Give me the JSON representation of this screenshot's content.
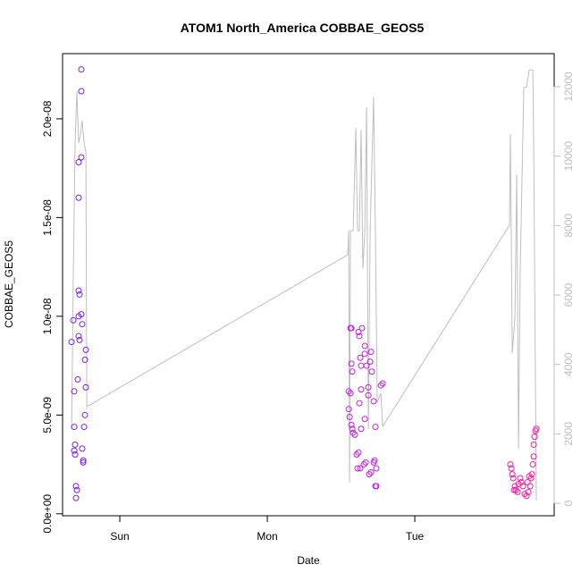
{
  "chart_data": {
    "type": "scatter",
    "title": "ATOM1 North_America COBBAE_GEOS5",
    "x_label": "Date",
    "y_label": "COBBAE_GEOS5",
    "xlim": [
      -0.388,
      2.945
    ],
    "xticks": [
      {
        "value": 0,
        "label": "Sun"
      },
      {
        "value": 1,
        "label": "Mon"
      },
      {
        "value": 2,
        "label": "Tue"
      }
    ],
    "ylim": [
      -1e-10,
      2.33e-08
    ],
    "yticks": [
      {
        "value": 0,
        "label": "0.0e+00"
      },
      {
        "value": 5e-09,
        "label": "5.0e-09"
      },
      {
        "value": 1e-08,
        "label": "1.0e-08"
      },
      {
        "value": 1.5e-08,
        "label": "1.5e-08"
      },
      {
        "value": 2e-08,
        "label": "2.0e-08"
      }
    ],
    "y2lim": [
      -360,
      12952
    ],
    "y2ticks": [
      0,
      2000,
      4000,
      6000,
      8000,
      10000,
      12000
    ],
    "y2_color": "#bebebe",
    "series": [
      {
        "type": "scatter",
        "color": "#7a1ff0",
        "x": [
          -0.261,
          -0.261,
          -0.261,
          -0.279,
          -0.279,
          -0.279,
          -0.273,
          -0.261,
          -0.279,
          -0.255,
          -0.315,
          -0.327,
          -0.279,
          -0.273,
          -0.23,
          -0.236,
          -0.23,
          -0.309,
          -0.285,
          -0.236,
          -0.242,
          -0.309,
          -0.303,
          -0.309,
          -0.303,
          -0.255,
          -0.248,
          -0.248,
          -0.297,
          -0.291,
          -0.297
        ],
        "values": [
          2.25e-08,
          2.14e-08,
          1.805e-08,
          1.78e-08,
          1.6e-08,
          1.13e-08,
          1.11e-08,
          1.01e-08,
          1e-08,
          9.6e-09,
          9.8e-09,
          8.7e-09,
          9e-09,
          8.8e-09,
          8.3e-09,
          7.8e-09,
          6.4e-09,
          6.2e-09,
          6.8e-09,
          5e-09,
          4.4e-09,
          4.4e-09,
          3.5e-09,
          3.2e-09,
          3e-09,
          3.3e-09,
          2.7e-09,
          2.6e-09,
          1.4e-09,
          1.2e-09,
          8e-10
        ]
      },
      {
        "type": "scatter",
        "color": "#c61ce0",
        "x": [
          1.564,
          1.57,
          1.552,
          1.564,
          1.552,
          1.558,
          1.57,
          1.576,
          1.582,
          1.594,
          1.57,
          1.576,
          1.618,
          1.624,
          1.642,
          1.63,
          1.636,
          1.636,
          1.624,
          1.636,
          1.661,
          1.661,
          1.673,
          1.685,
          1.685,
          1.697,
          1.703,
          1.709,
          1.721,
          1.733,
          1.661,
          1.606,
          1.618,
          1.612,
          1.63,
          1.655,
          1.667,
          1.691,
          1.703,
          1.721,
          1.727,
          1.739,
          1.733,
          1.739,
          1.782,
          1.77
        ],
        "values": [
          9.4e-09,
          9.4e-09,
          6.2e-09,
          6.1e-09,
          5.3e-09,
          4.9e-09,
          4.5e-09,
          4.3e-09,
          4.1e-09,
          4e-09,
          7.6e-09,
          7.2e-09,
          9.2e-09,
          9e-09,
          9.4e-09,
          7.9e-09,
          7.5e-09,
          6.3e-09,
          5.6e-09,
          4.3e-09,
          8.5e-09,
          8.1e-09,
          7.5e-09,
          6.4e-09,
          6e-09,
          7.7e-09,
          8.2e-09,
          7.2e-09,
          5.7e-09,
          4.4e-09,
          4.8e-09,
          3e-09,
          3.1e-09,
          2.3e-09,
          2.3e-09,
          2.5e-09,
          2.6e-09,
          2e-09,
          2.1e-09,
          2.6e-09,
          2.7e-09,
          2.3e-09,
          1.4e-09,
          1.4e-09,
          6.6e-09,
          6.5e-09
        ]
      },
      {
        "type": "scatter",
        "color": "#ff1aa0",
        "x": [
          2.648,
          2.655,
          2.661,
          2.667,
          2.673,
          2.685,
          2.697,
          2.703,
          2.715,
          2.721,
          2.733,
          2.745,
          2.758,
          2.77,
          2.782,
          2.788,
          2.794,
          2.8,
          2.806,
          2.806,
          2.812,
          2.818,
          2.824,
          2.679,
          2.764,
          2.776
        ],
        "values": [
          2.5e-09,
          2.3e-09,
          2e-09,
          1.8e-09,
          1.2e-09,
          1.2e-09,
          1.1e-09,
          1.5e-09,
          1.8e-09,
          1.6e-09,
          1.4e-09,
          1e-09,
          9e-10,
          1.1e-09,
          1.4e-09,
          1.8e-09,
          2e-09,
          2.5e-09,
          2.9e-09,
          3.5e-09,
          3.9e-09,
          4.2e-09,
          4.3e-09,
          1.4e-09,
          1.6e-09,
          1.9e-09
        ]
      },
      {
        "type": "line",
        "axis": "y2",
        "color": "#bebebe",
        "x": [
          -0.327,
          -0.315,
          -0.303,
          -0.291,
          -0.279,
          -0.267,
          -0.255,
          -0.242,
          -0.23,
          -0.224,
          1.545,
          1.552,
          1.558,
          1.564,
          1.582,
          1.6,
          1.612,
          1.624,
          1.636,
          1.648,
          1.661,
          1.673,
          1.685,
          1.697,
          1.721,
          1.733,
          1.745,
          1.77,
          1.782,
          2.642,
          2.648,
          2.661,
          2.679,
          2.691,
          2.703,
          2.715,
          2.727,
          2.739,
          2.758,
          2.776,
          2.8,
          2.806,
          2.824
        ],
        "values": [
          2136,
          6512,
          10373,
          11866,
          10373,
          10630,
          11017,
          10373,
          10116,
          2780,
          7156,
          7851,
          592,
          7851,
          7851,
          10811,
          7851,
          7851,
          10759,
          6770,
          7851,
          11403,
          2136,
          7851,
          11712,
          7800,
          2909,
          3166,
          2214,
          8005,
          10630,
          4324,
          5354,
          9472,
          1570,
          6770,
          9344,
          11969,
          11995,
          12484,
          12484,
          10245,
          77
        ]
      }
    ]
  }
}
